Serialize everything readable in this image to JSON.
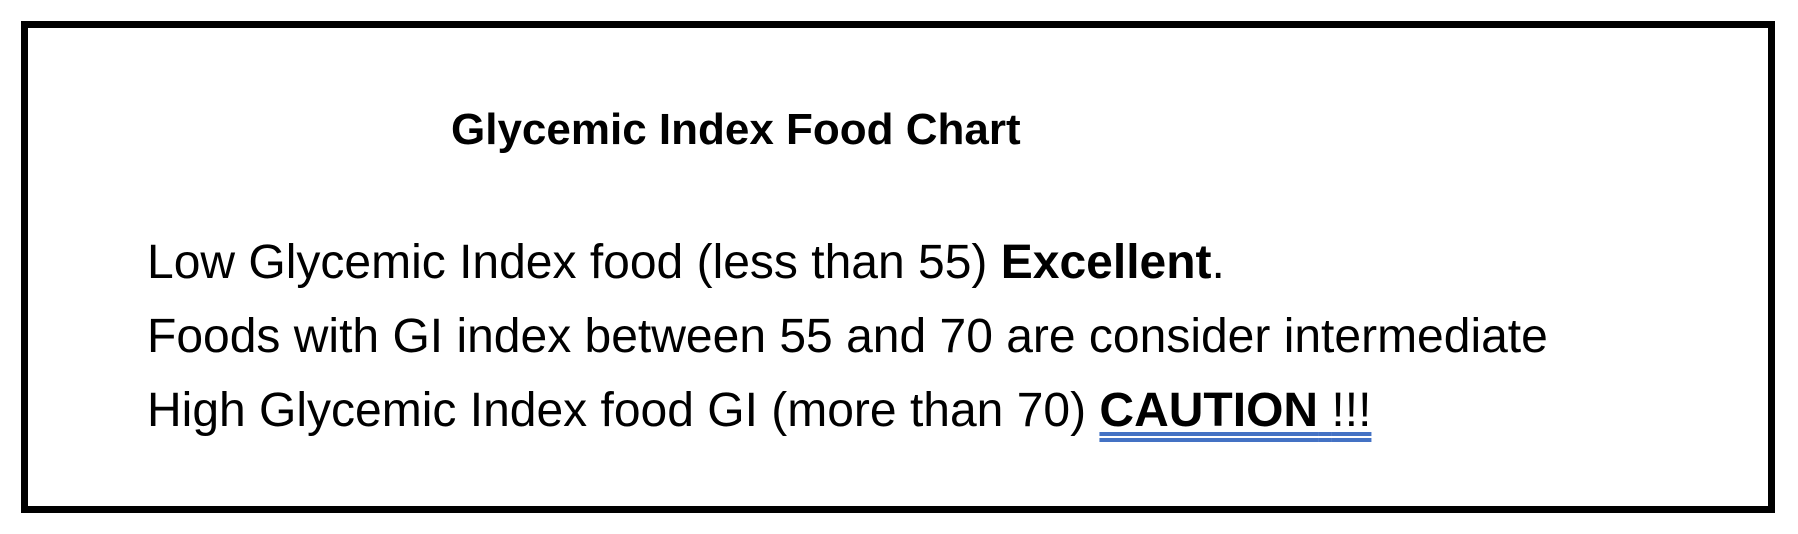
{
  "title": "Glycemic Index Food Chart",
  "lines": [
    {
      "text": "Low Glycemic Index food (less than 55)",
      "emphasis": "Excellent",
      "tail": "."
    },
    {
      "text": "Foods with GI index between 55 and 70 are consider intermediate"
    },
    {
      "text": "High Glycemic Index food GI (more than 70)",
      "emphasis": "CAUTION",
      "tail": "!!!"
    }
  ]
}
